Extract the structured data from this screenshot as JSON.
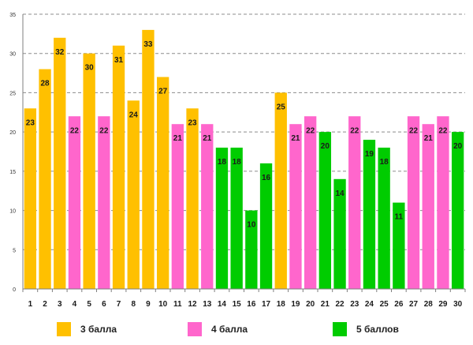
{
  "chart_data": {
    "type": "bar",
    "title": "",
    "xlabel": "",
    "ylabel": "",
    "ylim": [
      0,
      35
    ],
    "yticks": [
      0,
      5,
      10,
      15,
      20,
      25,
      30,
      35
    ],
    "grid": "horizontal dashed",
    "categories": [
      "1",
      "2",
      "3",
      "4",
      "5",
      "6",
      "7",
      "8",
      "9",
      "10",
      "11",
      "12",
      "13",
      "14",
      "15",
      "16",
      "17",
      "18",
      "19",
      "20",
      "21",
      "22",
      "23",
      "24",
      "25",
      "26",
      "27",
      "28",
      "29",
      "30"
    ],
    "values": [
      23,
      28,
      32,
      22,
      30,
      22,
      31,
      24,
      33,
      27,
      21,
      23,
      21,
      18,
      18,
      10,
      16,
      25,
      21,
      22,
      20,
      14,
      22,
      19,
      18,
      11,
      22,
      21,
      22,
      20
    ],
    "grades": [
      "3",
      "3",
      "3",
      "4",
      "3",
      "4",
      "3",
      "3",
      "3",
      "3",
      "4",
      "3",
      "4",
      "5",
      "5",
      "5",
      "5",
      "3",
      "4",
      "4",
      "5",
      "5",
      "4",
      "5",
      "5",
      "5",
      "4",
      "4",
      "4",
      "5"
    ],
    "colors": {
      "3": "#FFC000",
      "4": "#FF66CC",
      "5": "#00CC00"
    },
    "legend": [
      {
        "grade": "3",
        "label": "3 балла"
      },
      {
        "grade": "4",
        "label": "4 балла"
      },
      {
        "grade": "5",
        "label": "5 баллов"
      }
    ],
    "legend_position": "bottom"
  }
}
